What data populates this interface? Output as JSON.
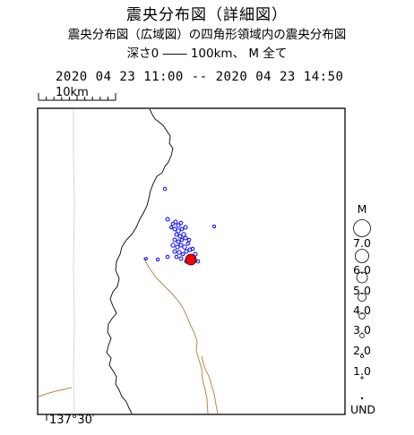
{
  "title": "震央分布図（詳細図）",
  "subtitle": "震央分布図（広域図）の四角形領域内の震央分布図",
  "conditions": "深さ0 ―― 100km、  M  全て",
  "period": "2020 04 23 11:00 -- 2020 04 23 14:50",
  "scale_bar": {
    "label": "10km"
  },
  "longitude_label": "137°30′",
  "colors": {
    "frame": "#000000",
    "coastline": "#000000",
    "border": "#d9d9d9",
    "fault": "#b8864b",
    "epicenter": "#0000ff",
    "largest_event": "#ff0000"
  },
  "legend": {
    "title": "M",
    "magnitudes": [
      "7.0",
      "6.0",
      "5.0",
      "4.0",
      "3.0",
      "2.0",
      "1.0",
      "UND"
    ]
  }
}
